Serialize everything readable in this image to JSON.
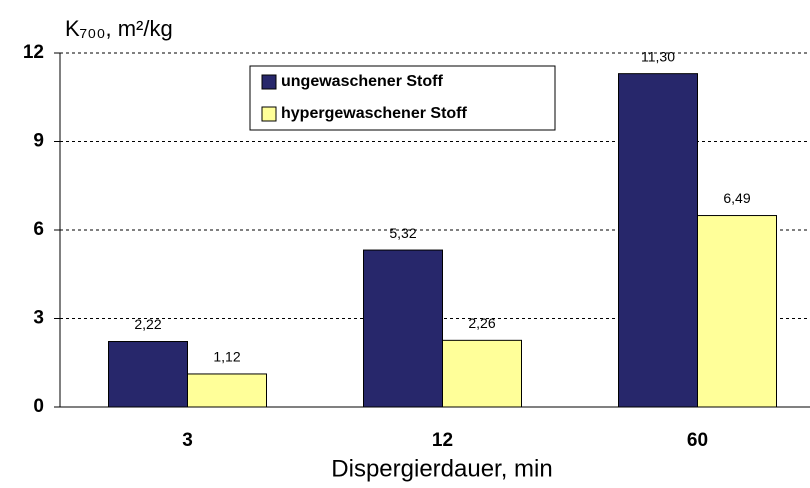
{
  "chart_data": {
    "type": "bar",
    "y_label": "K₇₀₀, m²/kg",
    "x_label": "Dispergierdauer, min",
    "categories": [
      "3",
      "12",
      "60"
    ],
    "series": [
      {
        "name": "ungewaschener Stoff",
        "color": "#27276b",
        "values": [
          2.22,
          5.32,
          11.3
        ],
        "value_labels": [
          "2,22",
          "5,32",
          "11,30"
        ]
      },
      {
        "name": "hypergewaschener Stoff",
        "color": "#ffff99",
        "values": [
          1.12,
          2.26,
          6.49
        ],
        "value_labels": [
          "1,12",
          "2,26",
          "6,49"
        ]
      }
    ],
    "ylim": [
      0,
      12
    ],
    "yticks": [
      0,
      3,
      6,
      9,
      12
    ],
    "grid": true
  }
}
